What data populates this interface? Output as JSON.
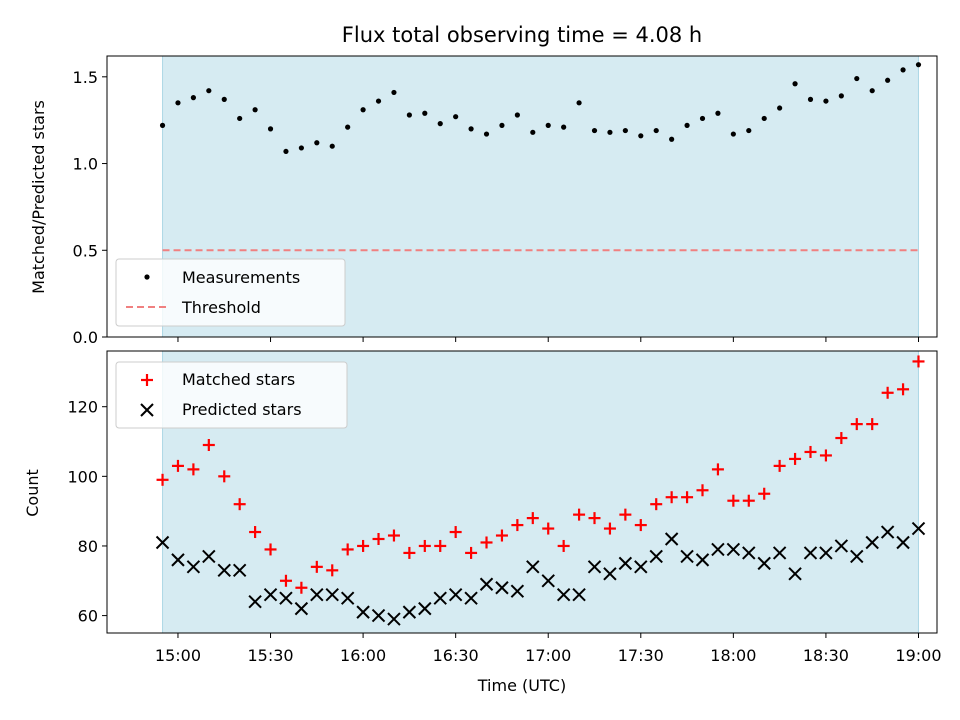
{
  "colors": {
    "shade": "#add8e6",
    "measurement": "#000000",
    "threshold": "#f08080",
    "matched": "#ff0000",
    "predicted": "#000000"
  },
  "chart_data": [
    {
      "type": "scatter",
      "title": "Flux total observing time = 4.08 h",
      "xlabel": "",
      "ylabel": "Matched/Predicted stars",
      "ylim": [
        0,
        1.62
      ],
      "yticks": [
        0.0,
        0.5,
        1.0,
        1.5
      ],
      "ytick_labels": [
        "0.0",
        "0.5",
        "1.0",
        "1.5"
      ],
      "shaded_interval": [
        "14:55",
        "19:00"
      ],
      "threshold": 0.5,
      "legend": [
        "Measurements",
        "Threshold"
      ],
      "legend_position": "lower-left",
      "series": [
        {
          "name": "Measurements",
          "x": [
            "14:55",
            "15:00",
            "15:05",
            "15:10",
            "15:15",
            "15:20",
            "15:25",
            "15:30",
            "15:35",
            "15:40",
            "15:45",
            "15:50",
            "15:55",
            "16:00",
            "16:05",
            "16:10",
            "16:15",
            "16:20",
            "16:25",
            "16:30",
            "16:35",
            "16:40",
            "16:45",
            "16:50",
            "16:55",
            "17:00",
            "17:05",
            "17:10",
            "17:15",
            "17:20",
            "17:25",
            "17:30",
            "17:35",
            "17:40",
            "17:45",
            "17:50",
            "17:55",
            "18:00",
            "18:05",
            "18:10",
            "18:15",
            "18:20",
            "18:25",
            "18:30",
            "18:35",
            "18:40",
            "18:45",
            "18:50",
            "18:55",
            "19:00"
          ],
          "y": [
            1.22,
            1.35,
            1.38,
            1.42,
            1.37,
            1.26,
            1.31,
            1.2,
            1.07,
            1.09,
            1.12,
            1.1,
            1.21,
            1.31,
            1.36,
            1.41,
            1.28,
            1.29,
            1.23,
            1.27,
            1.2,
            1.17,
            1.22,
            1.28,
            1.18,
            1.22,
            1.21,
            1.35,
            1.19,
            1.18,
            1.19,
            1.16,
            1.19,
            1.14,
            1.22,
            1.26,
            1.29,
            1.17,
            1.19,
            1.26,
            1.32,
            1.46,
            1.37,
            1.36,
            1.39,
            1.49,
            1.42,
            1.48,
            1.54,
            1.57
          ]
        }
      ]
    },
    {
      "type": "scatter",
      "title": "",
      "xlabel": "Time (UTC)",
      "ylabel": "Count",
      "ylim": [
        55,
        136
      ],
      "yticks": [
        60,
        80,
        100,
        120
      ],
      "ytick_labels": [
        "60",
        "80",
        "100",
        "120"
      ],
      "xlim": [
        "14:37",
        "19:06"
      ],
      "xticks": [
        "15:00",
        "15:30",
        "16:00",
        "16:30",
        "17:00",
        "17:30",
        "18:00",
        "18:30",
        "19:00"
      ],
      "shaded_interval": [
        "14:55",
        "19:00"
      ],
      "legend": [
        "Matched stars",
        "Predicted stars"
      ],
      "legend_position": "upper-left",
      "series": [
        {
          "name": "Matched stars",
          "marker": "+",
          "x": [
            "14:55",
            "15:00",
            "15:05",
            "15:10",
            "15:15",
            "15:20",
            "15:25",
            "15:30",
            "15:35",
            "15:40",
            "15:45",
            "15:50",
            "15:55",
            "16:00",
            "16:05",
            "16:10",
            "16:15",
            "16:20",
            "16:25",
            "16:30",
            "16:35",
            "16:40",
            "16:45",
            "16:50",
            "16:55",
            "17:00",
            "17:05",
            "17:10",
            "17:15",
            "17:20",
            "17:25",
            "17:30",
            "17:35",
            "17:40",
            "17:45",
            "17:50",
            "17:55",
            "18:00",
            "18:05",
            "18:10",
            "18:15",
            "18:20",
            "18:25",
            "18:30",
            "18:35",
            "18:40",
            "18:45",
            "18:50",
            "18:55",
            "19:00"
          ],
          "y": [
            99,
            103,
            102,
            109,
            100,
            92,
            84,
            79,
            70,
            68,
            74,
            73,
            79,
            80,
            82,
            83,
            78,
            80,
            80,
            84,
            78,
            81,
            83,
            86,
            88,
            85,
            80,
            89,
            88,
            85,
            89,
            86,
            92,
            94,
            94,
            96,
            102,
            93,
            93,
            95,
            103,
            105,
            107,
            106,
            111,
            115,
            115,
            124,
            125,
            133
          ]
        },
        {
          "name": "Predicted stars",
          "marker": "x",
          "x": [
            "14:55",
            "15:00",
            "15:05",
            "15:10",
            "15:15",
            "15:20",
            "15:25",
            "15:30",
            "15:35",
            "15:40",
            "15:45",
            "15:50",
            "15:55",
            "16:00",
            "16:05",
            "16:10",
            "16:15",
            "16:20",
            "16:25",
            "16:30",
            "16:35",
            "16:40",
            "16:45",
            "16:50",
            "16:55",
            "17:00",
            "17:05",
            "17:10",
            "17:15",
            "17:20",
            "17:25",
            "17:30",
            "17:35",
            "17:40",
            "17:45",
            "17:50",
            "17:55",
            "18:00",
            "18:05",
            "18:10",
            "18:15",
            "18:20",
            "18:25",
            "18:30",
            "18:35",
            "18:40",
            "18:45",
            "18:50",
            "18:55",
            "19:00"
          ],
          "y": [
            81,
            76,
            74,
            77,
            73,
            73,
            64,
            66,
            65,
            62,
            66,
            66,
            65,
            61,
            60,
            59,
            61,
            62,
            65,
            66,
            65,
            69,
            68,
            67,
            74,
            70,
            66,
            66,
            74,
            72,
            75,
            74,
            77,
            82,
            77,
            76,
            79,
            79,
            78,
            75,
            78,
            72,
            78,
            78,
            80,
            77,
            81,
            84,
            81,
            85
          ]
        }
      ]
    }
  ]
}
